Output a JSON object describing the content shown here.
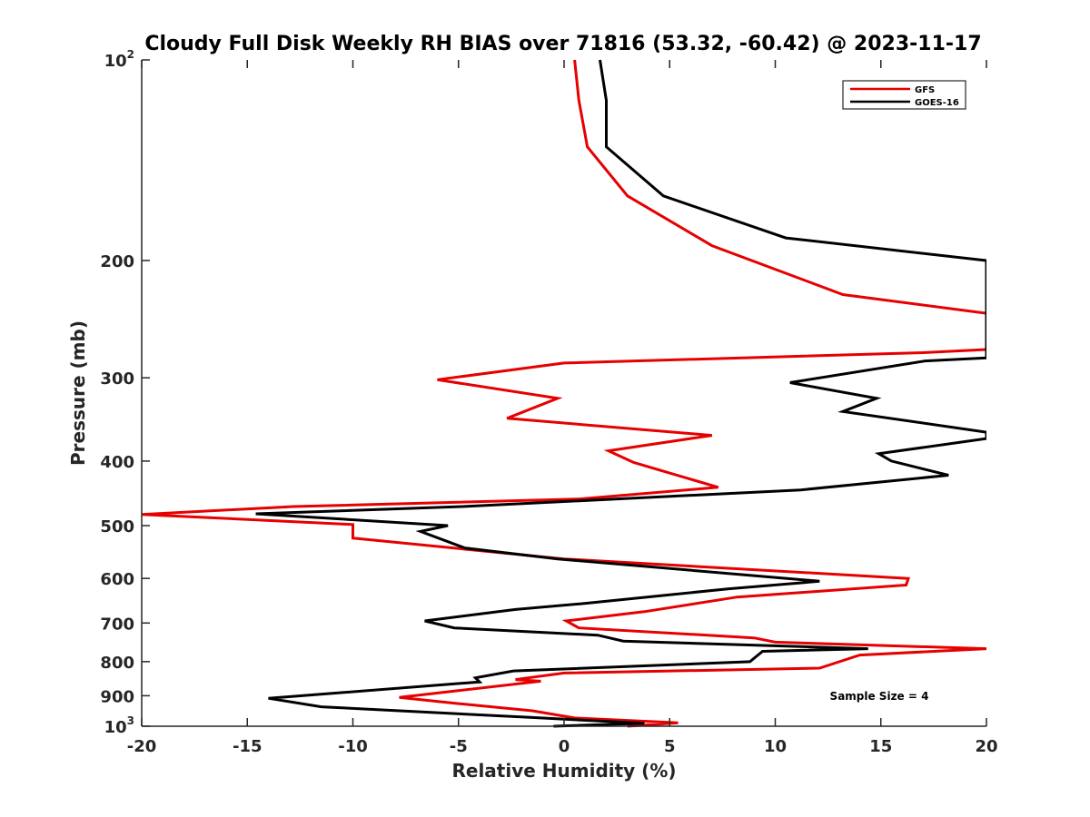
{
  "chart_data": {
    "type": "line",
    "title": "Cloudy Full Disk Weekly RH BIAS over 71816 (53.32, -60.42) @ 2023-11-17",
    "xlabel": "Relative Humidity (%)",
    "ylabel": "Pressure (mb)",
    "xlim": [
      -20,
      20
    ],
    "ylim": [
      100,
      1000
    ],
    "y_scale": "log",
    "y_reversed": true,
    "grid": false,
    "legend_position": "top-right",
    "x_ticks": [
      "-20",
      "-15",
      "-10",
      "-5",
      "0",
      "5",
      "10",
      "15",
      "20"
    ],
    "y_ticks": [
      {
        "value": 100,
        "label": "10",
        "exp": "2"
      },
      {
        "value": 200,
        "label": "200"
      },
      {
        "value": 300,
        "label": "300"
      },
      {
        "value": 400,
        "label": "400"
      },
      {
        "value": 500,
        "label": "500"
      },
      {
        "value": 600,
        "label": "600"
      },
      {
        "value": 700,
        "label": "700"
      },
      {
        "value": 800,
        "label": "800"
      },
      {
        "value": 900,
        "label": "900"
      },
      {
        "value": 1000,
        "label": "10",
        "exp": "3"
      }
    ],
    "annotation": "Sample Size = 4",
    "series": [
      {
        "name": "GFS",
        "color": "#e60000",
        "points": [
          [
            0.5,
            100
          ],
          [
            0.7,
            115
          ],
          [
            1.1,
            135
          ],
          [
            3.0,
            160
          ],
          [
            7.0,
            190
          ],
          [
            13.2,
            225
          ],
          [
            20.0,
            240
          ],
          [
            20.0,
            272
          ],
          [
            17.0,
            275
          ],
          [
            0.0,
            285
          ],
          [
            -6.0,
            302
          ],
          [
            -0.3,
            322
          ],
          [
            -2.7,
            345
          ],
          [
            7.0,
            366
          ],
          [
            2.1,
            386
          ],
          [
            3.3,
            402
          ],
          [
            7.3,
            438
          ],
          [
            0.7,
            456
          ],
          [
            -12.8,
            468
          ],
          [
            -20.0,
            481
          ],
          [
            -10.0,
            498
          ],
          [
            -10.0,
            522
          ],
          [
            0.0,
            561
          ],
          [
            16.3,
            600
          ],
          [
            16.2,
            614
          ],
          [
            8.2,
            640
          ],
          [
            3.8,
            673
          ],
          [
            0.1,
            695
          ],
          [
            0.7,
            712
          ],
          [
            9.0,
            737
          ],
          [
            10.0,
            748
          ],
          [
            20.0,
            765
          ],
          [
            14.0,
            782
          ],
          [
            12.1,
            818
          ],
          [
            0.0,
            832
          ],
          [
            -1.7,
            846
          ],
          [
            -2.3,
            851
          ],
          [
            -1.1,
            856
          ],
          [
            -7.8,
            905
          ],
          [
            -5.0,
            925
          ],
          [
            -1.5,
            948
          ],
          [
            0.5,
            972
          ],
          [
            5.4,
            988
          ],
          [
            3.0,
            1000
          ]
        ]
      },
      {
        "name": "GOES-16",
        "color": "#000000",
        "points": [
          [
            1.7,
            100
          ],
          [
            2.0,
            115
          ],
          [
            2.0,
            135
          ],
          [
            4.7,
            160
          ],
          [
            10.5,
            185
          ],
          [
            20.0,
            200
          ],
          [
            20.0,
            280
          ],
          [
            17.1,
            283
          ],
          [
            10.7,
            305
          ],
          [
            14.8,
            322
          ],
          [
            13.2,
            337
          ],
          [
            20.0,
            362
          ],
          [
            20.0,
            370
          ],
          [
            14.9,
            390
          ],
          [
            15.5,
            400
          ],
          [
            18.2,
            420
          ],
          [
            11.2,
            442
          ],
          [
            -4.8,
            468
          ],
          [
            -14.6,
            480
          ],
          [
            -5.5,
            500
          ],
          [
            -6.8,
            510
          ],
          [
            -4.7,
            540
          ],
          [
            -0.3,
            561
          ],
          [
            12.1,
            606
          ],
          [
            7.8,
            622
          ],
          [
            0.8,
            655
          ],
          [
            -2.3,
            668
          ],
          [
            -6.6,
            695
          ],
          [
            -5.2,
            712
          ],
          [
            1.6,
            730
          ],
          [
            2.8,
            745
          ],
          [
            14.4,
            765
          ],
          [
            9.4,
            772
          ],
          [
            8.8,
            800
          ],
          [
            -2.4,
            826
          ],
          [
            -4.2,
            846
          ],
          [
            -4.0,
            858
          ],
          [
            -14.0,
            908
          ],
          [
            -11.5,
            935
          ],
          [
            -1.6,
            970
          ],
          [
            3.8,
            990
          ],
          [
            -0.5,
            1000
          ]
        ]
      }
    ]
  }
}
